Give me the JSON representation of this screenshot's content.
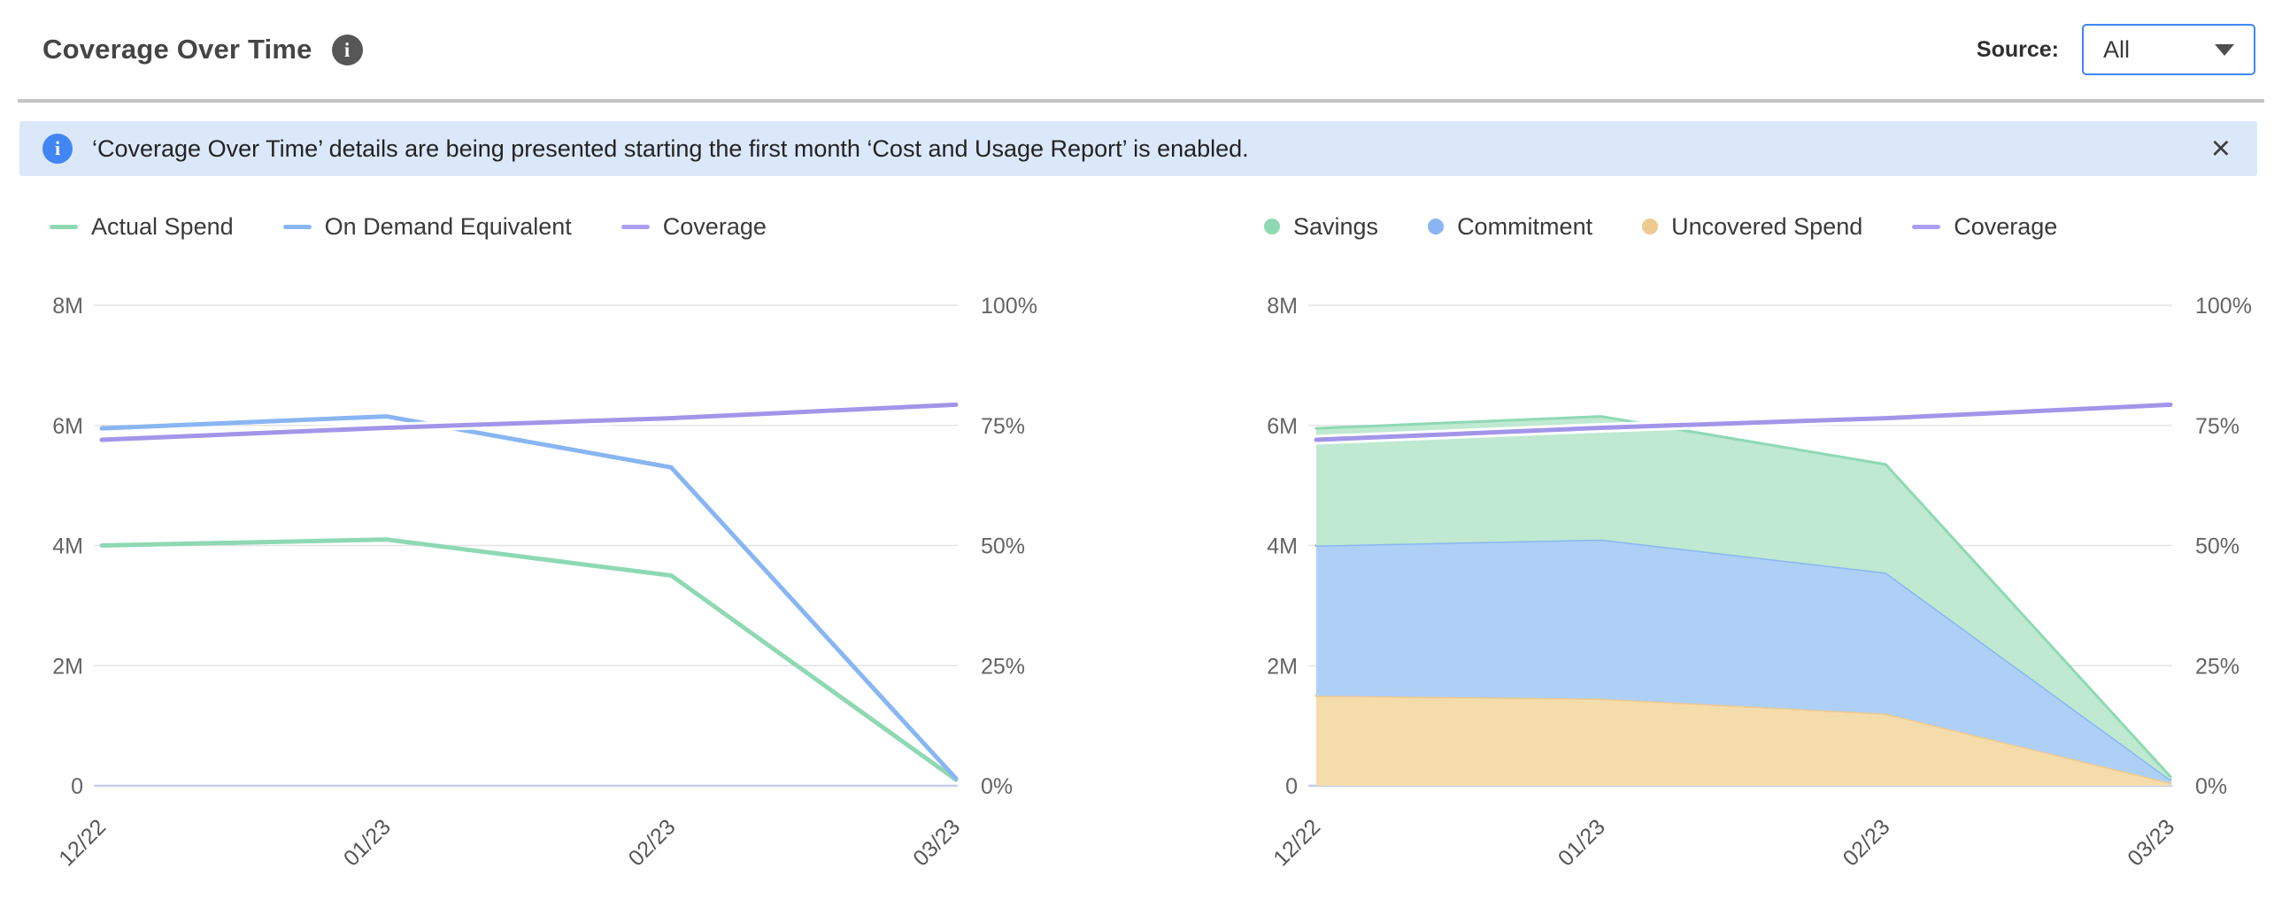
{
  "header": {
    "title": "Coverage Over Time",
    "info_glyph": "i",
    "source_label": "Source:",
    "source_value": "All"
  },
  "banner": {
    "info_glyph": "i",
    "text": "‘Coverage Over Time’ details are being presented starting the first month ‘Cost and Usage Report’ is enabled.",
    "close_glyph": "×"
  },
  "colors": {
    "green_line": "#8ed9b4",
    "green_fill": "#bfe9d1",
    "blue_line": "#89b6f2",
    "blue_fill": "#aed0f7",
    "orange_line": "#eeca90",
    "orange_fill": "#f5dcab",
    "purple_line": "#a295e9",
    "legend_purple": "#ac9ff2",
    "banner_bg": "#dbe8fa",
    "banner_icon_bg": "#4285f4",
    "dropdown_border": "#3f87f5",
    "gridline": "#e4e4e4",
    "baseline": "#c5cee7",
    "axis_text": "#646464"
  },
  "chart_data": [
    {
      "type": "line",
      "title": "",
      "categories": [
        "12/22",
        "01/23",
        "02/23",
        "03/23"
      ],
      "left_axis": {
        "ticks": [
          "0",
          "2M",
          "4M",
          "6M",
          "8M"
        ],
        "min": 0,
        "max": 8000000
      },
      "right_axis": {
        "ticks": [
          "0%",
          "25%",
          "50%",
          "75%",
          "100%"
        ],
        "min": 0,
        "max": 100
      },
      "grid": true,
      "legend_position": "top",
      "legend": [
        {
          "label": "Actual Spend",
          "marker": "line",
          "color": "#8ed9b4"
        },
        {
          "label": "On Demand Equivalent",
          "marker": "line",
          "color": "#89b6f2"
        },
        {
          "label": "Coverage",
          "marker": "line",
          "color": "#ac9ff2"
        }
      ],
      "series": [
        {
          "name": "Actual Spend",
          "kind": "line",
          "axis": "left",
          "color": "#8ed9b4",
          "values": [
            4000000,
            4100000,
            3500000,
            100000
          ]
        },
        {
          "name": "On Demand Equivalent",
          "kind": "line",
          "axis": "left",
          "color": "#89b6f2",
          "values": [
            5950000,
            6150000,
            5300000,
            120000
          ]
        },
        {
          "name": "Coverage",
          "kind": "line",
          "axis": "right",
          "color": "#a295e9",
          "halo": true,
          "values": [
            72,
            74.5,
            76.5,
            79.3
          ]
        }
      ]
    },
    {
      "type": "area",
      "title": "",
      "stacked": true,
      "categories": [
        "12/22",
        "01/23",
        "02/23",
        "03/23"
      ],
      "left_axis": {
        "ticks": [
          "0",
          "2M",
          "4M",
          "6M",
          "8M"
        ],
        "min": 0,
        "max": 8000000
      },
      "right_axis": {
        "ticks": [
          "0%",
          "25%",
          "50%",
          "75%",
          "100%"
        ],
        "min": 0,
        "max": 100
      },
      "grid": true,
      "legend_position": "top",
      "legend": [
        {
          "label": "Savings",
          "marker": "circle",
          "color": "#8ed9b4"
        },
        {
          "label": "Commitment",
          "marker": "circle",
          "color": "#89b6f2"
        },
        {
          "label": "Uncovered Spend",
          "marker": "circle",
          "color": "#eeca90"
        },
        {
          "label": "Coverage",
          "marker": "line",
          "color": "#ac9ff2"
        }
      ],
      "series": [
        {
          "name": "Uncovered Spend",
          "kind": "area",
          "axis": "left",
          "color": "#eeca90",
          "fill": "#f5dcab",
          "values": [
            1500000,
            1450000,
            1200000,
            50000
          ]
        },
        {
          "name": "Commitment",
          "kind": "area",
          "axis": "left",
          "color": "#89b6f2",
          "fill": "#aed0f7",
          "values": [
            2500000,
            2650000,
            2350000,
            50000
          ]
        },
        {
          "name": "Savings",
          "kind": "area",
          "axis": "left",
          "color": "#8ed9b4",
          "fill": "#bfe9d1",
          "values": [
            1950000,
            2050000,
            1800000,
            50000
          ]
        },
        {
          "name": "Coverage",
          "kind": "line",
          "axis": "right",
          "color": "#a295e9",
          "halo": true,
          "values": [
            72,
            74.5,
            76.5,
            79.3
          ]
        }
      ]
    }
  ]
}
